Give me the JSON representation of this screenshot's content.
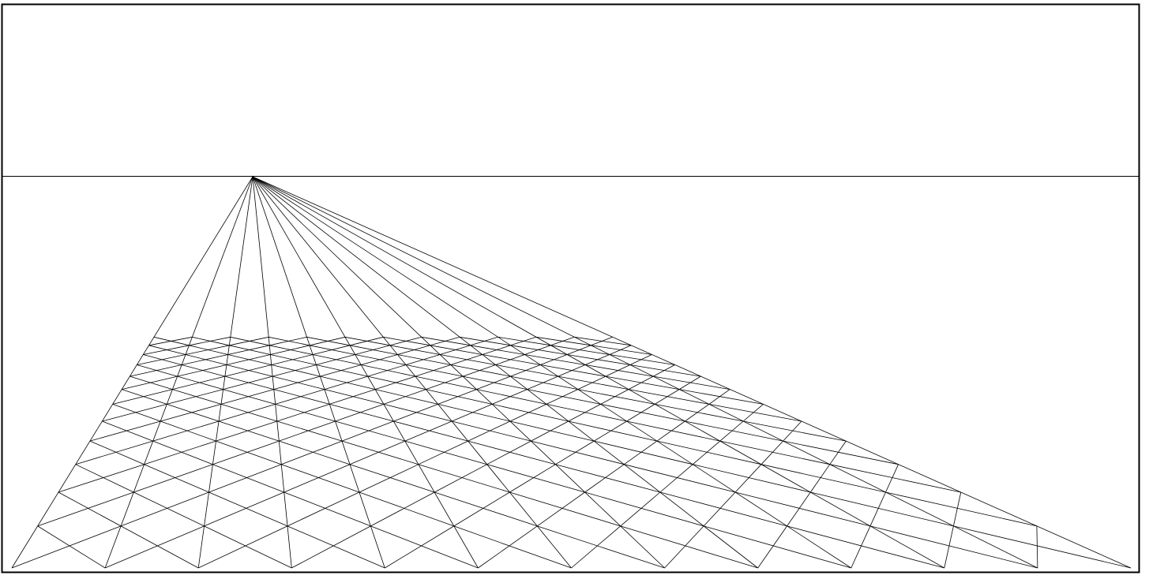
{
  "drawing": {
    "kind": "one-point perspective grid",
    "colors": {
      "background": "#ffffff",
      "stroke": "#000000"
    },
    "grid": {
      "orthogonal_line_count": 13,
      "transversal_line_count": 13,
      "cell_shape": "diamond"
    }
  }
}
